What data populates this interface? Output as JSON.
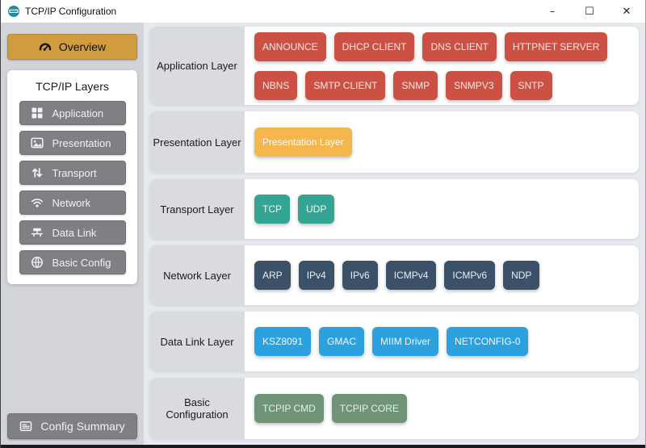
{
  "window": {
    "title": "TCP/IP Configuration",
    "controls": {
      "minimize": "–",
      "maximize": "☐",
      "close": "✕"
    }
  },
  "sidebar": {
    "overview_label": "Overview",
    "overview_icon": "gauge-icon",
    "layers_title": "TCP/IP Layers",
    "items": [
      {
        "label": "Application",
        "icon": "grid-icon"
      },
      {
        "label": "Presentation",
        "icon": "image-icon"
      },
      {
        "label": "Transport",
        "icon": "arrows-vertical-icon"
      },
      {
        "label": "Network",
        "icon": "wifi-icon"
      },
      {
        "label": "Data Link",
        "icon": "network-icon"
      },
      {
        "label": "Basic Config",
        "icon": "globe-icon"
      }
    ],
    "config_summary_label": "Config Summary",
    "config_summary_icon": "list-icon"
  },
  "main": {
    "rows": [
      {
        "label": "Application Layer",
        "color": "#CB5144",
        "text_color": "#F8E7E3",
        "buttons": [
          "ANNOUNCE",
          "DHCP CLIENT",
          "DNS CLIENT",
          "HTTPNET SERVER",
          "NBNS",
          "SMTP CLIENT",
          "SNMP",
          "SNMPV3",
          "SNTP"
        ]
      },
      {
        "label": "Presentation Layer",
        "color": "#F4B64D",
        "text_color": "#FFFDF8",
        "buttons": [
          "Presentation Layer"
        ]
      },
      {
        "label": "Transport Layer",
        "color": "#34A593",
        "text_color": "#ECF7F4",
        "buttons": [
          "TCP",
          "UDP"
        ]
      },
      {
        "label": "Network Layer",
        "color": "#3A5168",
        "text_color": "#E9EEF3",
        "buttons": [
          "ARP",
          "IPv4",
          "IPv6",
          "ICMPv4",
          "ICMPv6",
          "NDP"
        ]
      },
      {
        "label": "Data Link Layer",
        "color": "#2BA2DF",
        "text_color": "#F2F9FD",
        "buttons": [
          "KSZ8091",
          "GMAC",
          "MIIM Driver",
          "NETCONFIG-0"
        ]
      },
      {
        "label": "Basic Configuration",
        "color": "#6F9478",
        "text_color": "#E8EFE6",
        "buttons": [
          "TCPIP CMD",
          "TCPIP CORE"
        ]
      }
    ]
  },
  "colors": {
    "overview_accent": "#D09C3E",
    "sidebar_button": "#7F8084",
    "sidebar_bg": "#D2D4D9",
    "main_bg": "#E6EAEE",
    "row_label_bg": "#D9DBDE",
    "app_icon_teal": "#1C8C9E"
  }
}
